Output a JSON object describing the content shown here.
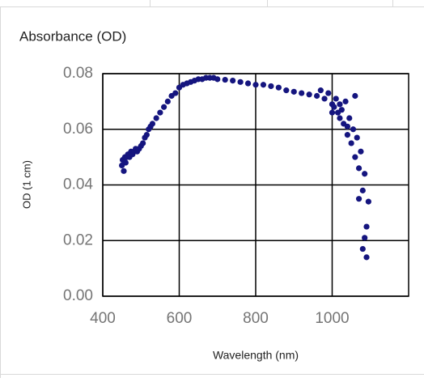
{
  "chart_data": {
    "type": "scatter",
    "title": "Absorbance (OD)",
    "x_label": "Wavelength (nm)",
    "y_label": "OD (1 cm)",
    "color": "#15157f",
    "grid": true,
    "xlim": [
      400,
      1200
    ],
    "xticks": [
      400,
      600,
      800,
      1000
    ],
    "ylim": [
      0,
      0.08
    ],
    "yticks": [
      {
        "value": 0,
        "label": "0.00"
      },
      0.02,
      0.04,
      0.06,
      0.08
    ],
    "x": [
      450,
      452,
      455,
      458,
      460,
      463,
      466,
      470,
      474,
      478,
      482,
      486,
      490,
      495,
      500,
      505,
      510,
      515,
      520,
      525,
      530,
      540,
      550,
      560,
      570,
      580,
      590,
      600,
      610,
      620,
      630,
      640,
      650,
      660,
      670,
      680,
      690,
      700,
      720,
      740,
      760,
      780,
      800,
      820,
      840,
      860,
      880,
      900,
      920,
      940,
      960,
      970,
      980,
      990,
      1000,
      1005,
      1010,
      1015,
      1020,
      1025,
      1030,
      1035,
      1040,
      1045,
      1050,
      1055,
      1060,
      1065,
      1070,
      1075,
      1080,
      1085,
      1090,
      1095,
      1000,
      1020,
      1040,
      1060,
      1070,
      1080,
      1085,
      1090
    ],
    "values": [
      0.047,
      0.049,
      0.045,
      0.05,
      0.048,
      0.05,
      0.051,
      0.05,
      0.052,
      0.051,
      0.052,
      0.053,
      0.052,
      0.053,
      0.054,
      0.055,
      0.057,
      0.058,
      0.06,
      0.061,
      0.062,
      0.064,
      0.066,
      0.068,
      0.07,
      0.072,
      0.073,
      0.075,
      0.076,
      0.0765,
      0.077,
      0.0775,
      0.078,
      0.078,
      0.0785,
      0.0785,
      0.0785,
      0.078,
      0.0778,
      0.0775,
      0.077,
      0.0765,
      0.076,
      0.076,
      0.0755,
      0.075,
      0.074,
      0.0735,
      0.073,
      0.0725,
      0.072,
      0.074,
      0.071,
      0.073,
      0.069,
      0.068,
      0.071,
      0.066,
      0.064,
      0.067,
      0.062,
      0.07,
      0.058,
      0.064,
      0.055,
      0.06,
      0.05,
      0.057,
      0.046,
      0.052,
      0.038,
      0.044,
      0.025,
      0.034,
      0.066,
      0.069,
      0.061,
      0.072,
      0.035,
      0.017,
      0.021,
      0.014
    ]
  }
}
